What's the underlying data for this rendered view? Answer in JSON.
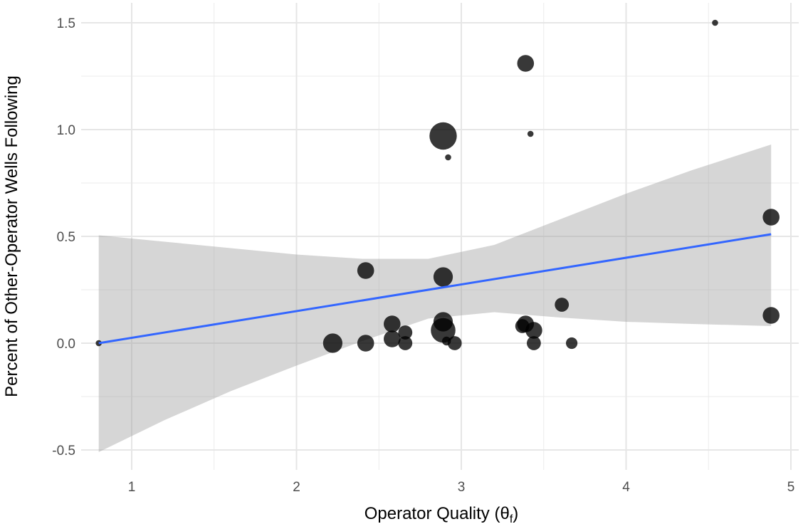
{
  "chart_data": {
    "type": "scatter",
    "xlabel": "Operator Quality (θ",
    "xlabel_subscript": "f",
    "xlabel_suffix": ")",
    "ylabel": "Percent of Other-Operator Wells Following",
    "xlim": [
      0.8,
      4.9
    ],
    "ylim": [
      -0.56,
      1.6
    ],
    "x_ticks": [
      1,
      2,
      3,
      4,
      5
    ],
    "x_tick_labels": [
      "1",
      "2",
      "3",
      "4",
      "5"
    ],
    "y_ticks": [
      -0.5,
      0.0,
      0.5,
      1.0,
      1.5
    ],
    "y_tick_labels": [
      "-0.5",
      "0.0",
      "0.5",
      "1.0",
      "1.5"
    ],
    "grid": true,
    "point_color": "#000000",
    "point_opacity": 0.78,
    "points": [
      {
        "x": 0.8,
        "y": 0.0,
        "size": 1
      },
      {
        "x": 2.22,
        "y": 0.0,
        "size": 6
      },
      {
        "x": 2.42,
        "y": 0.34,
        "size": 5
      },
      {
        "x": 2.42,
        "y": 0.0,
        "size": 5
      },
      {
        "x": 2.58,
        "y": 0.09,
        "size": 5
      },
      {
        "x": 2.58,
        "y": 0.02,
        "size": 5
      },
      {
        "x": 2.66,
        "y": 0.05,
        "size": 4
      },
      {
        "x": 2.66,
        "y": 0.0,
        "size": 4
      },
      {
        "x": 2.89,
        "y": 0.97,
        "size": 9
      },
      {
        "x": 2.89,
        "y": 0.31,
        "size": 6
      },
      {
        "x": 2.89,
        "y": 0.1,
        "size": 6
      },
      {
        "x": 2.89,
        "y": 0.06,
        "size": 8
      },
      {
        "x": 2.91,
        "y": 0.01,
        "size": 2
      },
      {
        "x": 2.92,
        "y": 0.87,
        "size": 1
      },
      {
        "x": 2.96,
        "y": 0.0,
        "size": 4
      },
      {
        "x": 3.37,
        "y": 0.08,
        "size": 4
      },
      {
        "x": 3.39,
        "y": 1.31,
        "size": 5
      },
      {
        "x": 3.39,
        "y": 0.09,
        "size": 5
      },
      {
        "x": 3.42,
        "y": 0.98,
        "size": 1
      },
      {
        "x": 3.44,
        "y": 0.06,
        "size": 5
      },
      {
        "x": 3.44,
        "y": 0.0,
        "size": 4
      },
      {
        "x": 3.61,
        "y": 0.18,
        "size": 4
      },
      {
        "x": 3.67,
        "y": 0.0,
        "size": 3
      },
      {
        "x": 4.54,
        "y": 1.5,
        "size": 1
      },
      {
        "x": 4.88,
        "y": 0.59,
        "size": 5
      },
      {
        "x": 4.88,
        "y": 0.13,
        "size": 5
      }
    ],
    "fit_line": {
      "color": "#3366ff",
      "x": [
        0.8,
        4.88
      ],
      "y": [
        0.0,
        0.51
      ]
    },
    "confidence_band": {
      "color": "#999999",
      "opacity": 0.4,
      "x": [
        0.8,
        1.2,
        1.6,
        2.0,
        2.4,
        2.8,
        3.2,
        3.6,
        4.0,
        4.4,
        4.88
      ],
      "upper": [
        0.505,
        0.475,
        0.445,
        0.415,
        0.395,
        0.395,
        0.46,
        0.58,
        0.7,
        0.81,
        0.93
      ],
      "lower": [
        -0.51,
        -0.36,
        -0.225,
        -0.105,
        0.01,
        0.115,
        0.145,
        0.12,
        0.1,
        0.09,
        0.08
      ]
    }
  }
}
